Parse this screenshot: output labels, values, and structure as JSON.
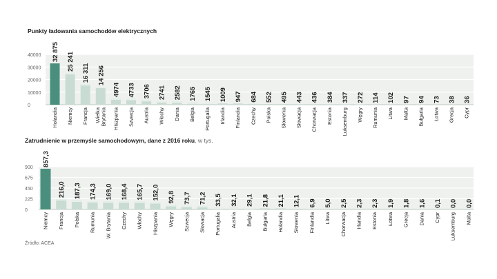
{
  "source": "Źródło: ACEA",
  "colors": {
    "highlight": "#4a8f7e",
    "bar": "#c9dcd3",
    "bar_top": "#e7f0ea",
    "band": "#eef1ee",
    "grid": "#ffffff",
    "text": "#1c1c1c",
    "muted": "#666666"
  },
  "chart_data": [
    {
      "type": "bar",
      "title": "Punkty ładowania samochodów elektrycznych",
      "xlabel": "",
      "ylabel": "",
      "ylim": [
        0,
        40000
      ],
      "yticks": [
        "0",
        "10000",
        "20000",
        "30000",
        "40000"
      ],
      "grid": true,
      "highlight_index": 0,
      "categories": [
        "Holandia",
        "Niemcy",
        "Francja",
        "Wielka Brytania",
        "Hiszpania",
        "Szwecja",
        "Austria",
        "Włochy",
        "Dania",
        "Belgia",
        "Portugalia",
        "Irlandia",
        "Finlandia",
        "Czechy",
        "Polska",
        "Słowenia",
        "Słowacja",
        "Chorwacja",
        "Estonia",
        "Luksemburg",
        "Węgry",
        "Rumunia",
        "Litwa",
        "Malta",
        "Bułgaria",
        "Łotwa",
        "Grecja",
        "Cypr"
      ],
      "category_lines": [
        [
          "Holandia"
        ],
        [
          "Niemcy"
        ],
        [
          "Francja"
        ],
        [
          "Wielka",
          "Brytania"
        ],
        [
          "Hiszpania"
        ],
        [
          "Szwecja"
        ],
        [
          "Austria"
        ],
        [
          "Włochy"
        ],
        [
          "Dania"
        ],
        [
          "Belgia"
        ],
        [
          "Portugalia"
        ],
        [
          "Irlandia"
        ],
        [
          "Finlandia"
        ],
        [
          "Czechy"
        ],
        [
          "Polska"
        ],
        [
          "Słowenia"
        ],
        [
          "Słowacja"
        ],
        [
          "Chorwacja"
        ],
        [
          "Estonia"
        ],
        [
          "Luksemburg"
        ],
        [
          "Węgry"
        ],
        [
          "Rumunia"
        ],
        [
          "Litwa"
        ],
        [
          "Malta"
        ],
        [
          "Bułgaria"
        ],
        [
          "Łotwa"
        ],
        [
          "Grecja"
        ],
        [
          "Cypr"
        ]
      ],
      "values": [
        32875,
        25241,
        16311,
        14256,
        4974,
        4733,
        3706,
        2741,
        2582,
        1765,
        1545,
        1009,
        947,
        684,
        552,
        495,
        443,
        436,
        384,
        337,
        272,
        114,
        102,
        97,
        94,
        73,
        38,
        36
      ],
      "labels": [
        "32 875",
        "25 241",
        "16 311",
        "14 256",
        "4974",
        "4733",
        "3706",
        "2741",
        "2582",
        "1765",
        "1545",
        "1009",
        "947",
        "684",
        "552",
        "495",
        "443",
        "436",
        "384",
        "337",
        "272",
        "114",
        "102",
        "97",
        "94",
        "73",
        "38",
        "36"
      ]
    },
    {
      "type": "bar",
      "title": "Zatrudnienie w przemyśle samochodowym, dane z 2016 roku",
      "unit": ", w tys.",
      "xlabel": "",
      "ylabel": "",
      "ylim": [
        0,
        900
      ],
      "yticks": [
        "0",
        "225",
        "450",
        "675",
        "900"
      ],
      "grid": true,
      "highlight_index": 0,
      "categories": [
        "Niemcy",
        "Francja",
        "Polska",
        "Rumunia",
        "W. Brytania",
        "Czechy",
        "Włochy",
        "Hiszpania",
        "Węgry",
        "Szwecja",
        "Słowacja",
        "Portugalia",
        "Austria",
        "Belgia",
        "Bułgaria",
        "Holandia",
        "Słowenia",
        "Finlandia",
        "Litwa",
        "Chorwacja",
        "Irlandia",
        "Estonia",
        "Łotwa",
        "Grecja",
        "Dania",
        "Cypr",
        "Luksemburg",
        "Malta"
      ],
      "category_lines": [
        [
          "Niemcy"
        ],
        [
          "Francja"
        ],
        [
          "Polska"
        ],
        [
          "Rumunia"
        ],
        [
          "W. Brytania"
        ],
        [
          "Czechy"
        ],
        [
          "Włochy"
        ],
        [
          "Hiszpania"
        ],
        [
          "Węgry"
        ],
        [
          "Szwecja"
        ],
        [
          "Słowacja"
        ],
        [
          "Portugalia"
        ],
        [
          "Austria"
        ],
        [
          "Belgia"
        ],
        [
          "Bułgaria"
        ],
        [
          "Holandia"
        ],
        [
          "Słowenia"
        ],
        [
          "Finlandia"
        ],
        [
          "Litwa"
        ],
        [
          "Chorwacja"
        ],
        [
          "Irlandia"
        ],
        [
          "Estonia"
        ],
        [
          "Łotwa"
        ],
        [
          "Grecja"
        ],
        [
          "Dania"
        ],
        [
          "Cypr"
        ],
        [
          "Luksemburg"
        ],
        [
          "Malta"
        ]
      ],
      "values": [
        857.3,
        216.0,
        187.3,
        174.3,
        169.0,
        168.4,
        165.7,
        152.0,
        92.8,
        73.7,
        71.2,
        33.5,
        32.1,
        29.1,
        21.8,
        21.1,
        12.1,
        6.9,
        5.0,
        2.5,
        2.3,
        2.3,
        1.9,
        1.8,
        1.6,
        0.1,
        0.0,
        0.0
      ],
      "labels": [
        "857,3",
        "216,0",
        "187,3",
        "174,3",
        "169,0",
        "168,4",
        "165,7",
        "152,0",
        "92,8",
        "73,7",
        "71,2",
        "33,5",
        "32,1",
        "29,1",
        "21,8",
        "21,1",
        "12,1",
        "6,9",
        "5,0",
        "2,5",
        "2,3",
        "2,3",
        "1,9",
        "1,8",
        "1,6",
        "0,1",
        "0,0",
        "0,0"
      ]
    }
  ]
}
